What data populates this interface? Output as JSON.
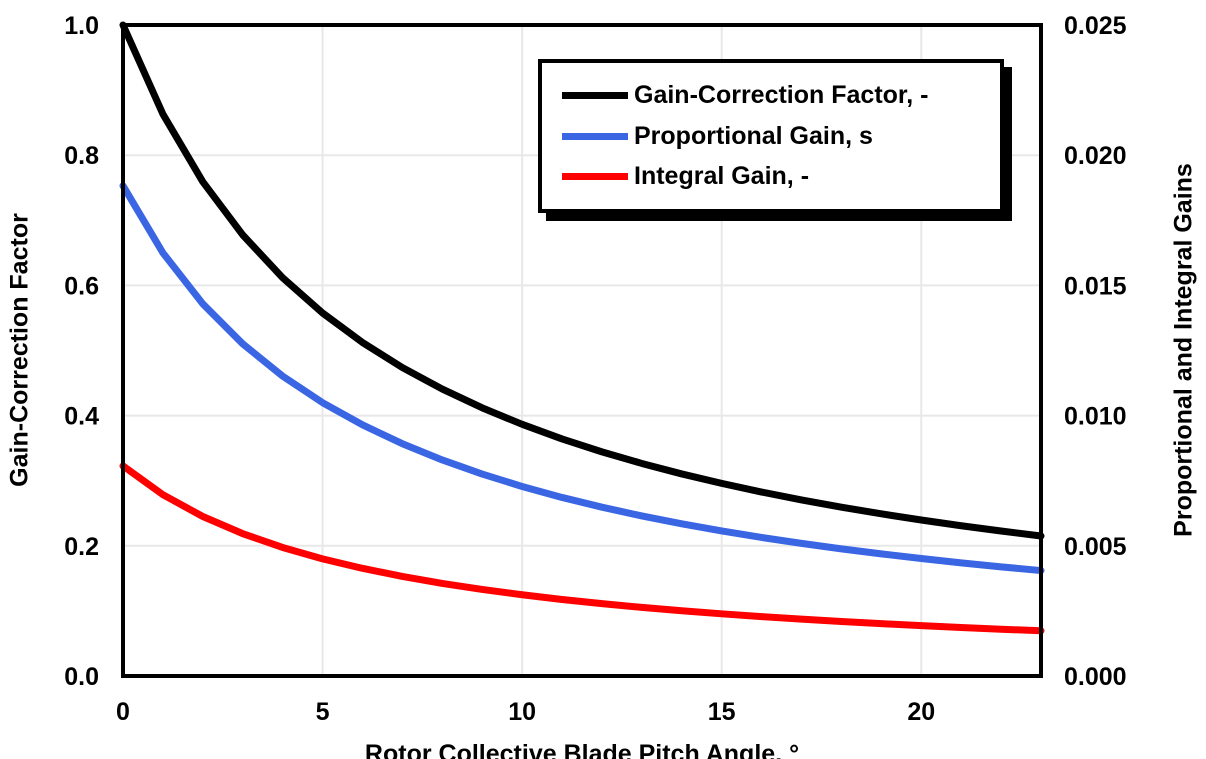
{
  "chart_data": {
    "type": "line",
    "title": "",
    "xlabel": "Rotor Collective Blade Pitch Angle, °",
    "ylabel_left": "Gain-Correction Factor",
    "ylabel_right": "Proportional and Integral Gains",
    "xlim": [
      0,
      23
    ],
    "ylim_left": [
      0.0,
      1.0
    ],
    "ylim_right": [
      0.0,
      0.025
    ],
    "x_ticks": [
      0,
      5,
      10,
      15,
      20
    ],
    "x_tick_labels": [
      "0",
      "5",
      "10",
      "15",
      "20"
    ],
    "left_ticks": [
      0.0,
      0.2,
      0.4,
      0.6,
      0.8,
      1.0
    ],
    "left_tick_labels": [
      "0.0",
      "0.2",
      "0.4",
      "0.6",
      "0.8",
      "1.0"
    ],
    "right_ticks": [
      0.0,
      0.005,
      0.01,
      0.015,
      0.02,
      0.025
    ],
    "right_tick_labels": [
      "0.000",
      "0.005",
      "0.010",
      "0.015",
      "0.020",
      "0.025"
    ],
    "grid": true,
    "grid_color": "#E8E8E8",
    "x_gridlines": [
      5,
      10,
      15,
      20
    ],
    "y_gridlines": [
      0.2,
      0.4,
      0.6,
      0.8
    ],
    "axis_color": "#000000",
    "background": "#FFFFFF",
    "legend_position": "top-center",
    "x": [
      0,
      1,
      2,
      3,
      4,
      5,
      6,
      7,
      8,
      9,
      10,
      11,
      12,
      13,
      14,
      15,
      16,
      17,
      18,
      19,
      20,
      21,
      22,
      23
    ],
    "series": [
      {
        "name": "Gain-Correction Factor, -",
        "axis": "left",
        "color": "#000000",
        "values": [
          1.0,
          0.8631,
          0.7591,
          0.6775,
          0.6117,
          0.5576,
          0.5123,
          0.4738,
          0.4407,
          0.4119,
          0.3866,
          0.3642,
          0.3443,
          0.3265,
          0.3104,
          0.2959,
          0.2826,
          0.2705,
          0.2593,
          0.2491,
          0.2396,
          0.2308,
          0.2227,
          0.2151
        ]
      },
      {
        "name": "Proportional Gain, s",
        "axis": "right",
        "color": "#3A66E3",
        "values": [
          0.018827,
          0.016249,
          0.014291,
          0.012755,
          0.011516,
          0.010498,
          0.009645,
          0.00892,
          0.008297,
          0.007755,
          0.007278,
          0.006857,
          0.006482,
          0.006147,
          0.005843,
          0.005571,
          0.00532,
          0.005093,
          0.004882,
          0.00469,
          0.004511,
          0.004345,
          0.004192,
          0.004049
        ]
      },
      {
        "name": "Integral Gain, -",
        "axis": "right",
        "color": "#FF0000",
        "values": [
          0.008069,
          0.006964,
          0.006125,
          0.005467,
          0.004936,
          0.004499,
          0.004134,
          0.003823,
          0.003556,
          0.003324,
          0.003119,
          0.002939,
          0.002778,
          0.002634,
          0.002504,
          0.002388,
          0.00228,
          0.002183,
          0.002092,
          0.00201,
          0.001933,
          0.001862,
          0.001797,
          0.001736
        ]
      }
    ]
  }
}
